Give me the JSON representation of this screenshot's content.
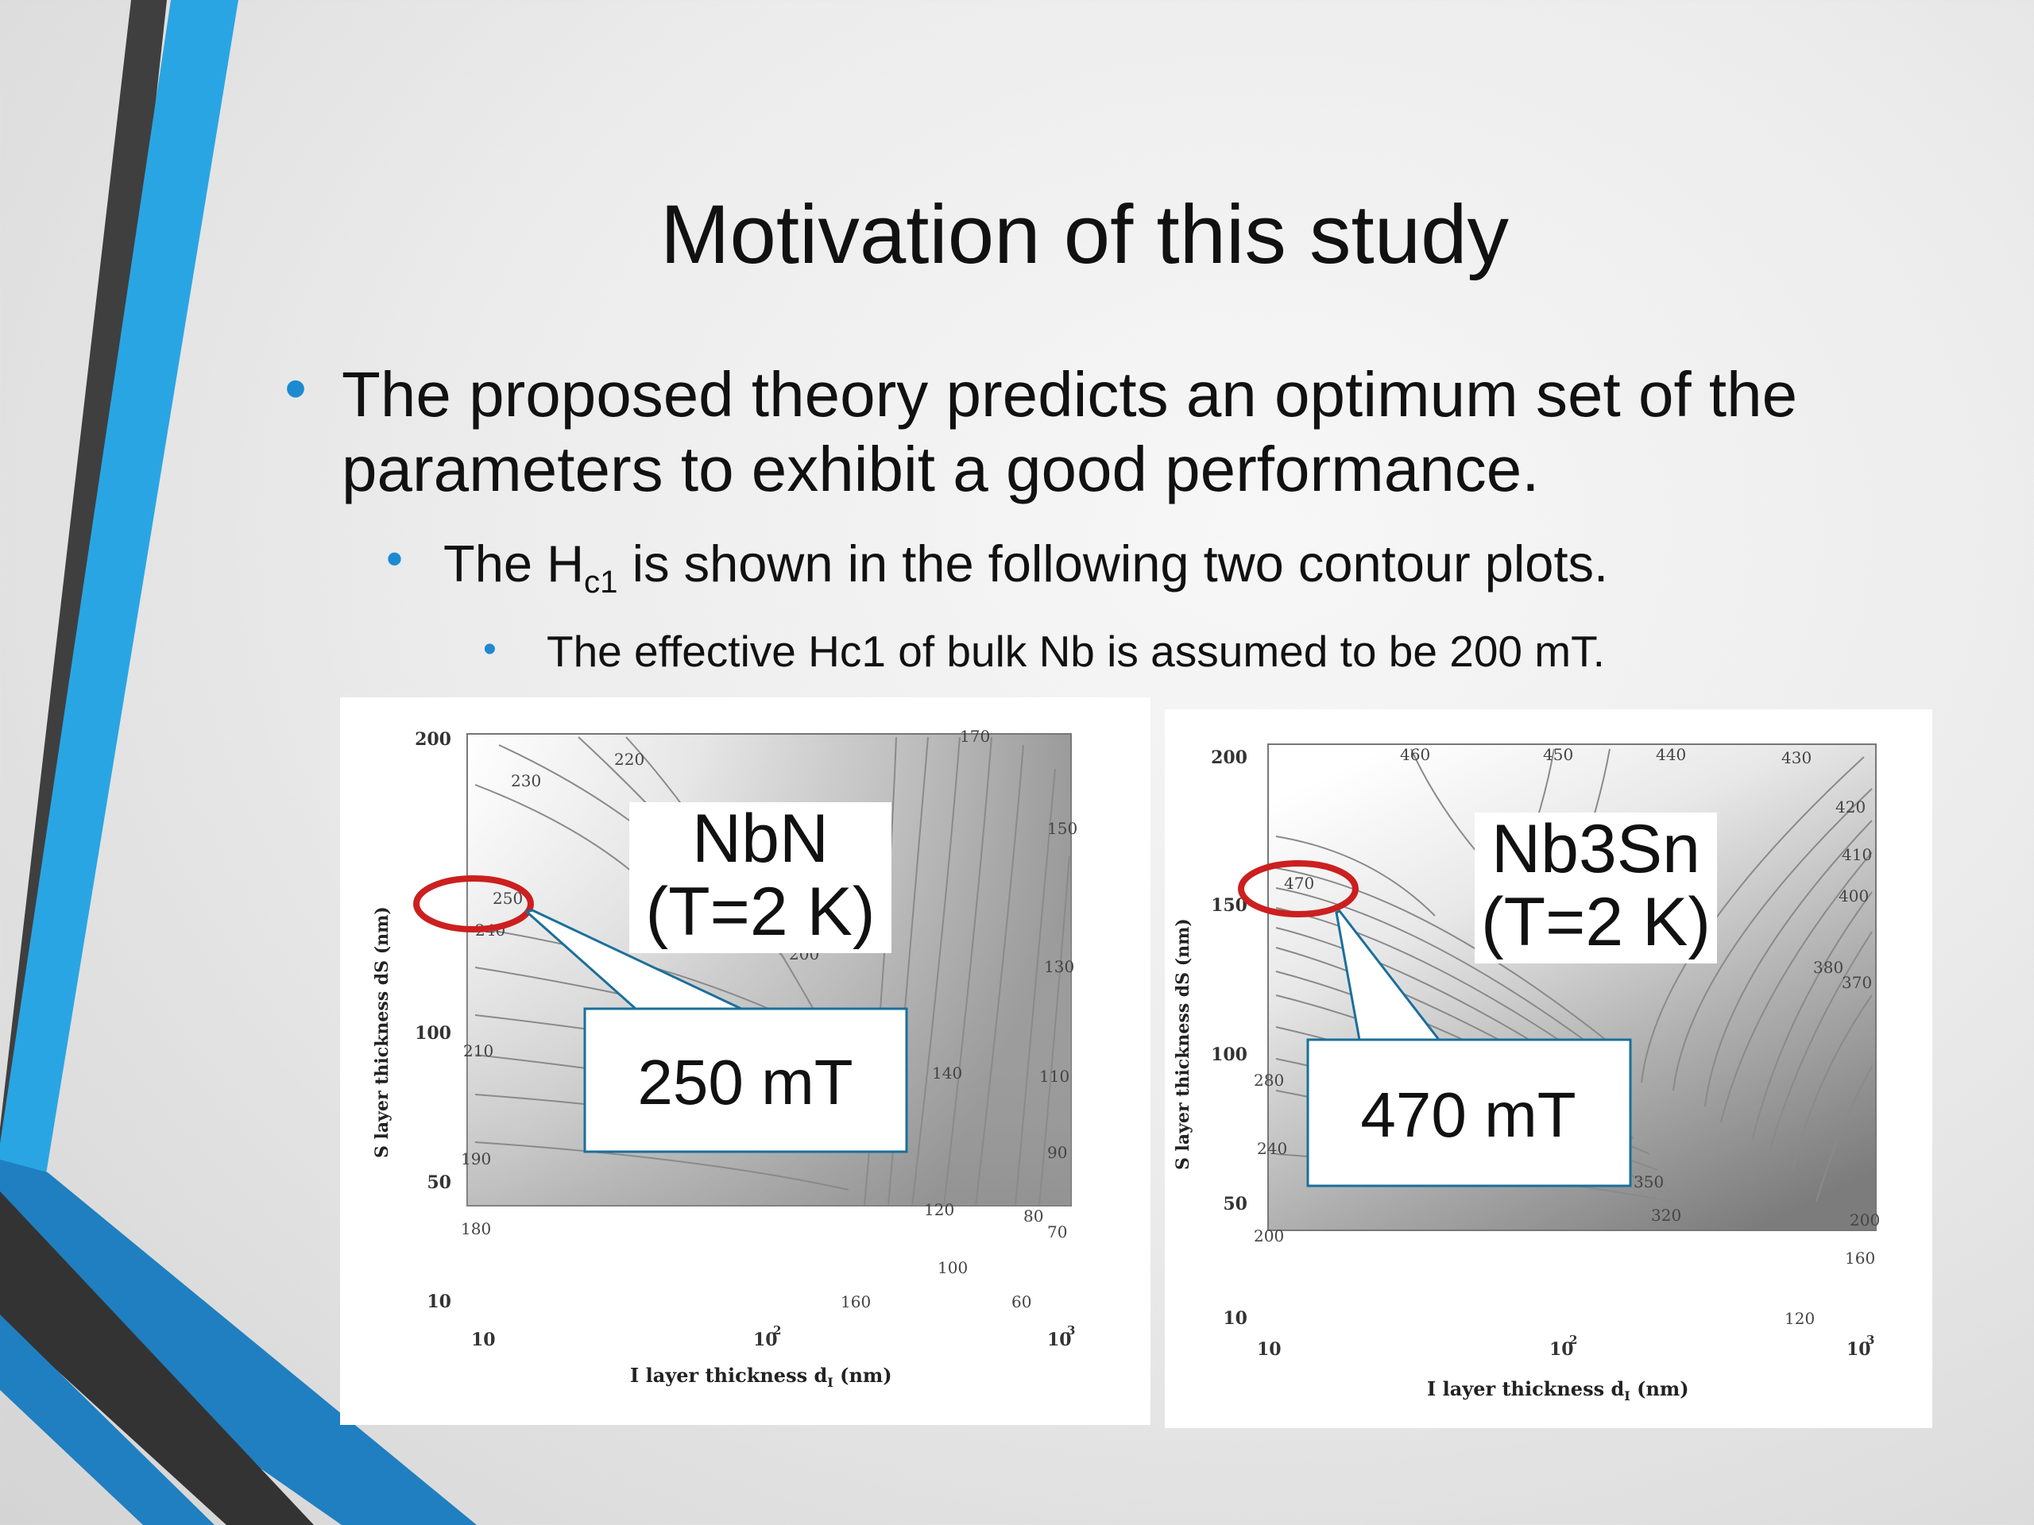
{
  "slide": {
    "title": "Motivation of this study",
    "bullets": [
      {
        "level": 1,
        "text": "The proposed theory predicts an optimum set of the parameters to exhibit a good performance."
      },
      {
        "level": 2,
        "text_before": "The H",
        "sub": "c1",
        "text_after": " is shown in the following two contour plots."
      },
      {
        "level": 3,
        "text": "The effective Hc1 of bulk Nb is assumed to be 200 mT."
      }
    ],
    "colors": {
      "accent_blue": "#2aa5e4",
      "dark_band": "#454545",
      "highlight_circle": "#cc1f1f",
      "callout_border": "#1a6f9a"
    }
  },
  "plots": [
    {
      "label_line1": "NbN",
      "label_line2": "(T=2 K)",
      "callout": "250 mT",
      "y_ticks": [
        "200",
        "100",
        "50",
        "10"
      ],
      "x_ticks": [
        "10",
        "10",
        "2",
        "10",
        "3"
      ],
      "xlabel": "I  layer thickness  d",
      "xlabel_sub": "I",
      "xlabel_unit": "  (nm)",
      "ylabel": "S  layer thickness  dS  (nm)",
      "contour_labels": [
        "230",
        "220",
        "170",
        "150",
        "250",
        "240",
        "200",
        "130",
        "210",
        "140",
        "110",
        "190",
        "90",
        "180",
        "120",
        "80",
        "70",
        "100",
        "160",
        "60"
      ]
    },
    {
      "label_line1": "Nb3Sn",
      "label_line2": "(T=2 K)",
      "callout": "470 mT",
      "y_ticks": [
        "200",
        "150",
        "100",
        "50",
        "10"
      ],
      "x_ticks": [
        "10",
        "10",
        "2",
        "10",
        "3"
      ],
      "xlabel": "I  layer thickness  d",
      "xlabel_sub": "I",
      "xlabel_unit": "  (nm)",
      "ylabel": "S  layer thickness  dS  (nm)",
      "contour_labels": [
        "460",
        "450",
        "440",
        "430",
        "420",
        "410",
        "400",
        "470",
        "380",
        "370",
        "280",
        "240",
        "350",
        "320",
        "200",
        "200",
        "160",
        "120"
      ]
    }
  ]
}
